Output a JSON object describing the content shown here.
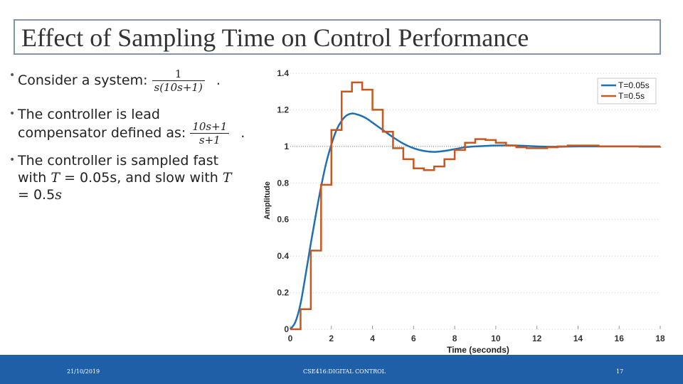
{
  "slide": {
    "title": "Effect of Sampling Time on Control Performance",
    "bullet1_text": "Consider a system:",
    "bullet1_num": "1",
    "bullet1_den": "s(10s+1)",
    "bullet1_end": ".",
    "bullet2_line1": "The controller is lead",
    "bullet2_line2": "compensator defined as:",
    "bullet2_num": "10s+1",
    "bullet2_den": "s+1",
    "bullet2_end": ".",
    "bullet3_line1": "The controller is sampled fast",
    "bullet3_line2a": "with ",
    "bullet3_T1": "T",
    "bullet3_line2b": " = 0.05s, and slow with ",
    "bullet3_T2": "T",
    "bullet3_line3": "= 0.5",
    "bullet3_s": "s"
  },
  "footer": {
    "date": "21/10/2019",
    "course": "CSE416:DIGITAL CONTROL",
    "page": "17"
  },
  "chart_data": {
    "type": "line",
    "title": "",
    "xlabel": "Time (seconds)",
    "ylabel": "Amplitude",
    "xlim": [
      0,
      18
    ],
    "ylim": [
      0,
      1.4
    ],
    "xticks": [
      0,
      2,
      4,
      6,
      8,
      10,
      12,
      14,
      16,
      18
    ],
    "yticks": [
      0,
      0.2,
      0.4,
      0.6,
      0.8,
      1,
      1.2,
      1.4
    ],
    "ytick_labels": [
      "0",
      "0.2",
      "0.4",
      "0.6",
      "0.8",
      "1",
      "1.2",
      "1.4"
    ],
    "reference_line": 1,
    "legend_position": "top-right",
    "series": [
      {
        "name": "T=0.05s",
        "color": "#1f6fb4",
        "step": false,
        "x": [
          0,
          0.25,
          0.5,
          0.75,
          1.0,
          1.25,
          1.5,
          1.75,
          2.0,
          2.25,
          2.5,
          2.75,
          3.0,
          3.25,
          3.5,
          3.75,
          4.0,
          4.5,
          5.0,
          5.5,
          6.0,
          6.5,
          7.0,
          7.5,
          8.0,
          8.5,
          9.0,
          10.0,
          11.0,
          12.0,
          13.0,
          14.0,
          16.0,
          18.0
        ],
        "y": [
          0,
          0.04,
          0.14,
          0.3,
          0.47,
          0.63,
          0.78,
          0.91,
          1.01,
          1.09,
          1.14,
          1.17,
          1.18,
          1.175,
          1.165,
          1.15,
          1.13,
          1.09,
          1.05,
          1.015,
          0.99,
          0.975,
          0.97,
          0.975,
          0.985,
          0.995,
          1.0,
          1.005,
          1.005,
          1.0,
          0.998,
          1.0,
          1.0,
          1.0
        ]
      },
      {
        "name": "T=0.5s",
        "color": "#c8571f",
        "step": true,
        "x": [
          0,
          0.5,
          1.0,
          1.5,
          2.0,
          2.5,
          3.0,
          3.5,
          4.0,
          4.5,
          5.0,
          5.5,
          6.0,
          6.5,
          7.0,
          7.5,
          8.0,
          8.5,
          9.0,
          9.5,
          10.0,
          10.5,
          11.0,
          11.5,
          12.0,
          12.5,
          13.0,
          13.5,
          14.0,
          15.0,
          16.0,
          17.0,
          18.0
        ],
        "y": [
          0,
          0.11,
          0.43,
          0.79,
          1.09,
          1.3,
          1.35,
          1.31,
          1.2,
          1.08,
          0.99,
          0.93,
          0.88,
          0.87,
          0.89,
          0.93,
          0.98,
          1.02,
          1.04,
          1.035,
          1.02,
          1.005,
          0.995,
          0.99,
          0.99,
          0.995,
          1.0,
          1.005,
          1.005,
          1.0,
          1.0,
          0.998,
          1.0
        ]
      }
    ]
  }
}
